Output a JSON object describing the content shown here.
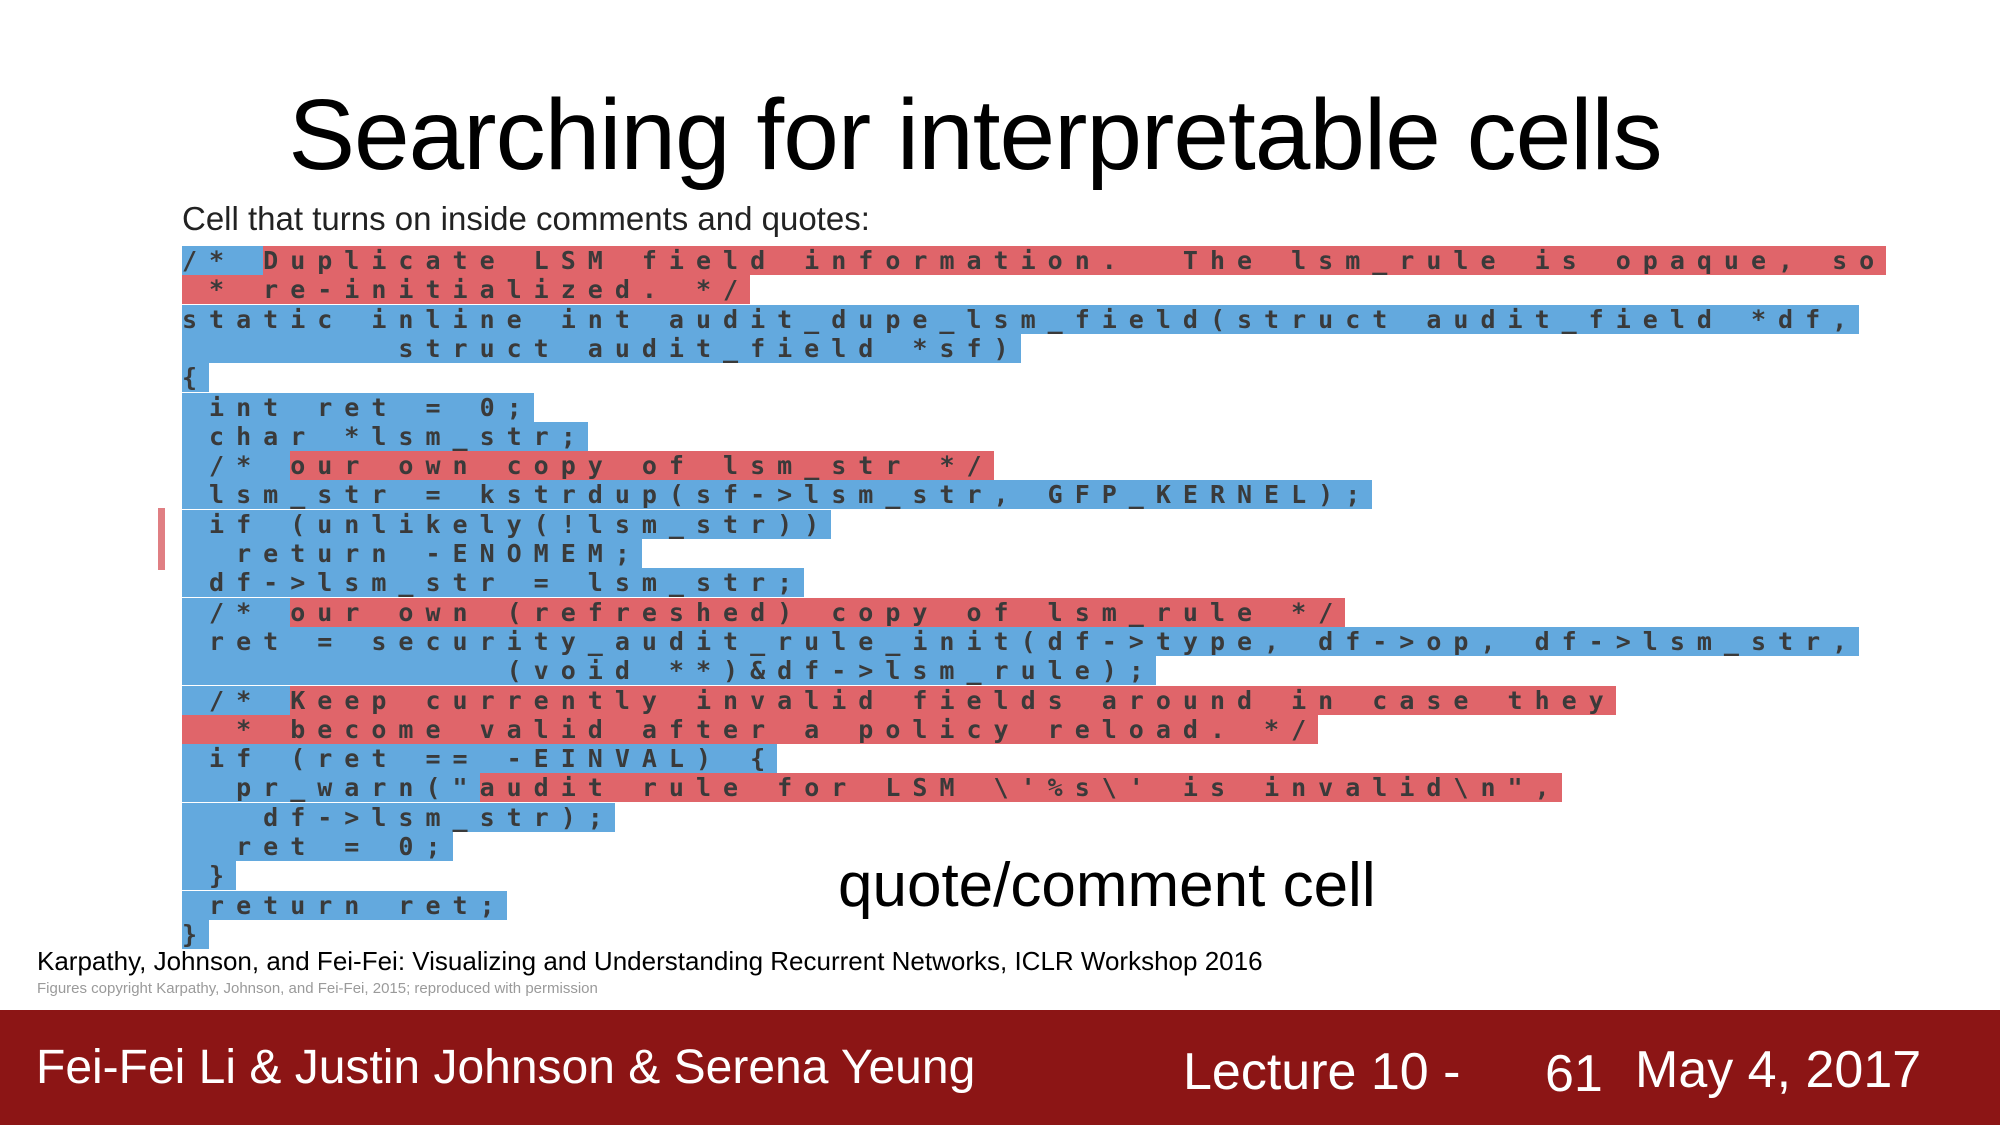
{
  "slide": {
    "title": "Searching for  interpretable cells",
    "subheading": "Cell that turns on inside comments and quotes:",
    "cell_label": "quote/comment cell",
    "citation": "Karpathy, Johnson, and Fei-Fei: Visualizing and Understanding Recurrent Networks, ICLR Workshop 2016",
    "copyright": "Figures copyright Karpathy, Johnson, and Fei-Fei, 2015; reproduced with permission"
  },
  "code_lines": [
    [
      {
        "t": "/* ",
        "c": "b"
      },
      {
        "t": "Duplicate LSM field information.  The lsm_rule is opaque, so",
        "c": "r"
      }
    ],
    [
      {
        "t": " * re-initialized. */",
        "c": "r"
      }
    ],
    [
      {
        "t": "static inline int audit_dupe_lsm_field(struct audit_field *df,",
        "c": "b"
      }
    ],
    [
      {
        "t": "        struct audit_field *sf)",
        "c": "b"
      }
    ],
    [
      {
        "t": "{",
        "c": "b"
      }
    ],
    [
      {
        "t": " int ret = 0;",
        "c": "b"
      }
    ],
    [
      {
        "t": " char *lsm_str;",
        "c": "b"
      }
    ],
    [
      {
        "t": " /* ",
        "c": "b"
      },
      {
        "t": "our own copy of lsm_str */",
        "c": "r"
      }
    ],
    [
      {
        "t": " lsm_str = kstrdup(sf->lsm_str, GFP_KERNEL);",
        "c": "b"
      }
    ],
    [
      {
        "t": " if (unlikely(!lsm_str))",
        "c": "b"
      }
    ],
    [
      {
        "t": "  return -ENOMEM;",
        "c": "b"
      }
    ],
    [
      {
        "t": " df->lsm_str = lsm_str;",
        "c": "b"
      }
    ],
    [
      {
        "t": " /* ",
        "c": "b"
      },
      {
        "t": "our own (refreshed) copy of lsm_rule */",
        "c": "r"
      }
    ],
    [
      {
        "t": " ret = security_audit_rule_init(df->type, df->op, df->lsm_str,",
        "c": "b"
      }
    ],
    [
      {
        "t": "            (void **)&df->lsm_rule);",
        "c": "b"
      }
    ],
    [
      {
        "t": " /* ",
        "c": "b"
      },
      {
        "t": "Keep currently invalid fields around in case they",
        "c": "r"
      }
    ],
    [
      {
        "t": "  * become valid after a policy reload. */",
        "c": "r"
      }
    ],
    [
      {
        "t": " if (ret == -EINVAL) {",
        "c": "b"
      }
    ],
    [
      {
        "t": "  pr_warn(\"",
        "c": "b"
      },
      {
        "t": "audit rule for LSM \\'%s\\' is invalid\\n\",",
        "c": "r"
      }
    ],
    [
      {
        "t": "   df->lsm_str);",
        "c": "b"
      }
    ],
    [
      {
        "t": "  ret = 0;",
        "c": "b"
      }
    ],
    [
      {
        "t": " }",
        "c": "b"
      }
    ],
    [
      {
        "t": " return ret;",
        "c": "b"
      }
    ],
    [
      {
        "t": "}",
        "c": "b"
      }
    ]
  ],
  "footer": {
    "authors": "Fei-Fei Li & Justin Johnson & Serena Yeung",
    "lecture": "Lecture 10 -",
    "page": "61",
    "date": "May 4, 2017"
  },
  "colors": {
    "footer_bg": "#8c1515",
    "active_red": "#e0656a",
    "inactive_blue": "#63a9de"
  }
}
